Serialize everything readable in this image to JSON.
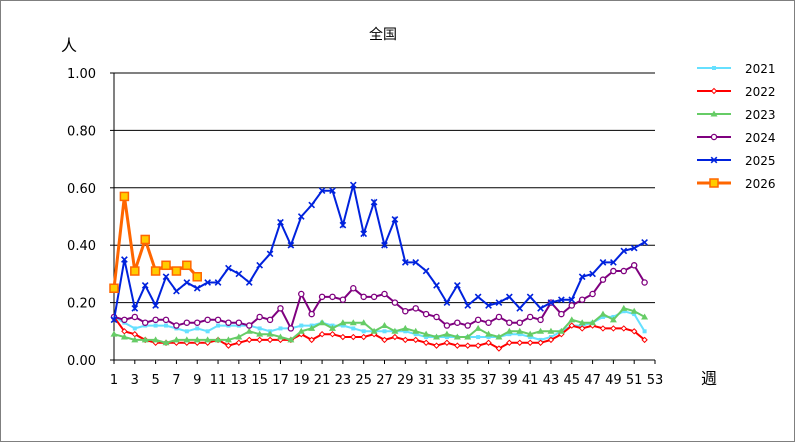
{
  "chart_data": {
    "type": "line",
    "title": "全国",
    "ylabel": "人",
    "xlabel": "週",
    "ylim": [
      0,
      1.0
    ],
    "xlim": [
      1,
      53
    ],
    "y_ticks": [
      "0.00",
      "0.20",
      "0.40",
      "0.60",
      "0.80",
      "1.00"
    ],
    "x_ticks": [
      "1",
      "3",
      "5",
      "7",
      "9",
      "11",
      "13",
      "15",
      "17",
      "19",
      "21",
      "23",
      "25",
      "27",
      "29",
      "31",
      "33",
      "35",
      "37",
      "39",
      "41",
      "43",
      "45",
      "47",
      "49",
      "51",
      "53"
    ],
    "grid": "horizontal",
    "legend_position": "right",
    "series": [
      {
        "name": "2021",
        "color": "#66e0ff",
        "marker": "small-square",
        "values": [
          0.15,
          0.13,
          0.11,
          0.12,
          0.12,
          0.12,
          0.11,
          0.1,
          0.11,
          0.1,
          0.12,
          0.12,
          0.12,
          0.12,
          0.11,
          0.1,
          0.11,
          0.11,
          0.12,
          0.12,
          0.13,
          0.12,
          0.12,
          0.11,
          0.1,
          0.1,
          0.1,
          0.1,
          0.1,
          0.09,
          0.08,
          0.08,
          0.08,
          0.08,
          0.08,
          0.08,
          0.08,
          0.08,
          0.09,
          0.09,
          0.08,
          0.07,
          0.08,
          0.1,
          0.12,
          0.12,
          0.13,
          0.15,
          0.15,
          0.17,
          0.16,
          0.1
        ]
      },
      {
        "name": "2022",
        "color": "#ff0000",
        "marker": "diamond",
        "values": [
          0.15,
          0.1,
          0.09,
          0.07,
          0.06,
          0.06,
          0.06,
          0.06,
          0.06,
          0.06,
          0.07,
          0.05,
          0.06,
          0.07,
          0.07,
          0.07,
          0.07,
          0.07,
          0.09,
          0.07,
          0.09,
          0.09,
          0.08,
          0.08,
          0.08,
          0.09,
          0.07,
          0.08,
          0.07,
          0.07,
          0.06,
          0.05,
          0.06,
          0.05,
          0.05,
          0.05,
          0.06,
          0.04,
          0.06,
          0.06,
          0.06,
          0.06,
          0.07,
          0.09,
          0.12,
          0.11,
          0.12,
          0.11,
          0.11,
          0.11,
          0.1,
          0.07
        ]
      },
      {
        "name": "2023",
        "color": "#66cc66",
        "marker": "triangle",
        "values": [
          0.09,
          0.08,
          0.07,
          0.07,
          0.07,
          0.06,
          0.07,
          0.07,
          0.07,
          0.07,
          0.07,
          0.07,
          0.08,
          0.1,
          0.09,
          0.09,
          0.08,
          0.07,
          0.1,
          0.11,
          0.13,
          0.11,
          0.13,
          0.13,
          0.13,
          0.1,
          0.12,
          0.1,
          0.11,
          0.1,
          0.09,
          0.08,
          0.09,
          0.08,
          0.08,
          0.11,
          0.09,
          0.08,
          0.1,
          0.1,
          0.09,
          0.1,
          0.1,
          0.1,
          0.14,
          0.13,
          0.13,
          0.16,
          0.14,
          0.18,
          0.17,
          0.15
        ]
      },
      {
        "name": "2024",
        "color": "#7f007f",
        "marker": "circle",
        "values": [
          0.15,
          0.14,
          0.15,
          0.13,
          0.14,
          0.14,
          0.12,
          0.13,
          0.13,
          0.14,
          0.14,
          0.13,
          0.13,
          0.12,
          0.15,
          0.14,
          0.18,
          0.11,
          0.23,
          0.16,
          0.22,
          0.22,
          0.21,
          0.25,
          0.22,
          0.22,
          0.23,
          0.2,
          0.17,
          0.18,
          0.16,
          0.15,
          0.12,
          0.13,
          0.12,
          0.14,
          0.13,
          0.15,
          0.13,
          0.13,
          0.15,
          0.14,
          0.2,
          0.16,
          0.19,
          0.21,
          0.23,
          0.28,
          0.31,
          0.31,
          0.33,
          0.27
        ]
      },
      {
        "name": "2025",
        "color": "#0022dd",
        "marker": "x",
        "values": [
          0.14,
          0.35,
          0.18,
          0.26,
          0.19,
          0.29,
          0.24,
          0.27,
          0.25,
          0.27,
          0.27,
          0.32,
          0.3,
          0.27,
          0.33,
          0.37,
          0.48,
          0.4,
          0.5,
          0.54,
          0.59,
          0.59,
          0.47,
          0.61,
          0.44,
          0.55,
          0.4,
          0.49,
          0.34,
          0.34,
          0.31,
          0.26,
          0.2,
          0.26,
          0.19,
          0.22,
          0.19,
          0.2,
          0.22,
          0.18,
          0.22,
          0.18,
          0.2,
          0.21,
          0.21,
          0.29,
          0.3,
          0.34,
          0.34,
          0.38,
          0.39,
          0.41
        ]
      },
      {
        "name": "2026",
        "color": "#ff6600",
        "marker": "big-square",
        "values": [
          0.25,
          0.57,
          0.31,
          0.42,
          0.31,
          0.33,
          0.31,
          0.33,
          0.29
        ]
      }
    ]
  }
}
